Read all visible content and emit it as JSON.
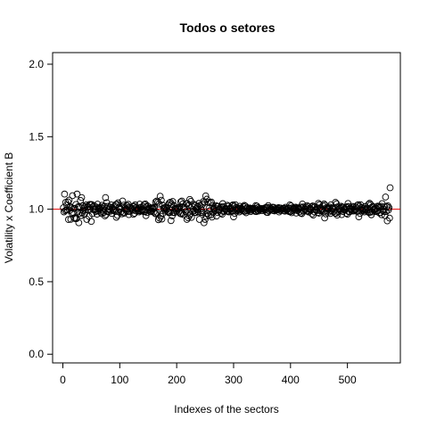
{
  "chart_data": {
    "type": "scatter",
    "title": "Todos o setores",
    "xlabel": "Indexes of the sectors",
    "ylabel": "Volatility x Coefficient B",
    "xlim": [
      -18,
      593
    ],
    "ylim": [
      -0.06,
      2.08
    ],
    "x_ticks": [
      0,
      100,
      200,
      300,
      400,
      500
    ],
    "y_ticks": [
      0.0,
      0.5,
      1.0,
      1.5,
      2.0
    ],
    "x_tick_labels": [
      "0",
      "100",
      "200",
      "300",
      "400",
      "500"
    ],
    "y_tick_labels": [
      "0.0",
      "0.5",
      "1.0",
      "1.5",
      "2.0"
    ],
    "reference_line": {
      "y": 1.0,
      "color": "#e00000"
    },
    "marker": "open-circle",
    "point_color": "#000000",
    "series": [
      {
        "n_points": 575,
        "x_start": 1,
        "x_end": 575,
        "y_estimates": [
          [
            2,
            1.03
          ],
          [
            3,
            0.88
          ],
          [
            5,
            1.07
          ],
          [
            7,
            0.94
          ],
          [
            9,
            1.05
          ],
          [
            10,
            0.87
          ],
          [
            14,
            1.08
          ],
          [
            17,
            0.9
          ],
          [
            20,
            1.06
          ],
          [
            22,
            0.92
          ],
          [
            25,
            0.88
          ],
          [
            28,
            1.1
          ],
          [
            30,
            0.96
          ],
          [
            33,
            0.9
          ],
          [
            38,
            1.05
          ],
          [
            42,
            0.93
          ],
          [
            46,
            1.08
          ],
          [
            50,
            0.91
          ],
          [
            55,
            1.03
          ],
          [
            60,
            0.95
          ],
          [
            68,
            1.05
          ],
          [
            75,
            0.92
          ],
          [
            85,
            1.04
          ],
          [
            95,
            0.93
          ],
          [
            105,
            1.06
          ],
          [
            115,
            0.95
          ],
          [
            125,
            1.05
          ],
          [
            135,
            0.96
          ],
          [
            145,
            1.06
          ],
          [
            155,
            0.97
          ],
          [
            165,
            1.07
          ],
          [
            172,
            1.1
          ],
          [
            180,
            0.97
          ],
          [
            190,
            1.09
          ],
          [
            200,
            0.98
          ],
          [
            210,
            1.08
          ],
          [
            218,
            0.93
          ],
          [
            225,
            0.92
          ],
          [
            232,
            1.06
          ],
          [
            240,
            0.93
          ],
          [
            248,
            1.1
          ],
          [
            255,
            1.08
          ],
          [
            260,
            0.92
          ],
          [
            270,
            1.05
          ],
          [
            280,
            0.95
          ],
          [
            290,
            1.04
          ],
          [
            300,
            0.94
          ],
          [
            310,
            1.03
          ],
          [
            320,
            0.96
          ],
          [
            330,
            1.02
          ],
          [
            340,
            0.97
          ],
          [
            350,
            1.01
          ],
          [
            360,
            0.97
          ],
          [
            370,
            1.02
          ],
          [
            380,
            0.98
          ],
          [
            390,
            1.02
          ],
          [
            400,
            0.96
          ],
          [
            410,
            1.03
          ],
          [
            420,
            0.95
          ],
          [
            430,
            1.04
          ],
          [
            440,
            0.95
          ],
          [
            450,
            1.05
          ],
          [
            460,
            0.94
          ],
          [
            470,
            1.04
          ],
          [
            480,
            0.94
          ],
          [
            490,
            1.04
          ],
          [
            500,
            0.95
          ],
          [
            510,
            1.03
          ],
          [
            520,
            0.94
          ],
          [
            530,
            1.03
          ],
          [
            540,
            0.94
          ],
          [
            550,
            1.02
          ],
          [
            558,
            1.03
          ],
          [
            560,
            0.93
          ],
          [
            565,
            1.04
          ],
          [
            567,
            1.09
          ],
          [
            570,
            0.92
          ],
          [
            573,
            1.03
          ],
          [
            575,
            1.17
          ]
        ]
      }
    ]
  }
}
